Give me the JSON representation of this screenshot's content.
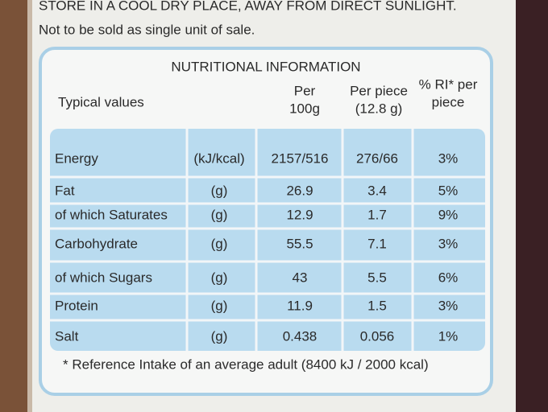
{
  "top_lines": [
    "STORE IN A COOL DRY PLACE, AWAY FROM DIRECT SUNLIGHT.",
    "Not to be sold as single unit of sale."
  ],
  "title": "NUTRITIONAL INFORMATION",
  "header": {
    "label": "Typical values",
    "per_100g": [
      "Per",
      "100g"
    ],
    "per_piece": [
      "Per piece",
      "(12.8 g)"
    ],
    "ri": [
      "% RI* per",
      "piece"
    ]
  },
  "table": {
    "rows": [
      [
        "Energy",
        "(kJ/kcal)",
        "2157/516",
        "276/66",
        "3%"
      ],
      [
        "Fat",
        "(g)",
        "26.9",
        "3.4",
        "5%"
      ],
      [
        "of which Saturates",
        "(g)",
        "12.9",
        "1.7",
        "9%"
      ],
      [
        "Carbohydrate",
        "(g)",
        "55.5",
        "7.1",
        "3%"
      ],
      [
        "of which Sugars",
        "(g)",
        "43",
        "5.5",
        "6%"
      ],
      [
        "Protein",
        "(g)",
        "11.9",
        "1.5",
        "3%"
      ],
      [
        "Salt",
        "(g)",
        "0.438",
        "0.056",
        "1%"
      ]
    ]
  },
  "footnote": "* Reference Intake of an average adult (8400 kJ / 2000 kcal)"
}
